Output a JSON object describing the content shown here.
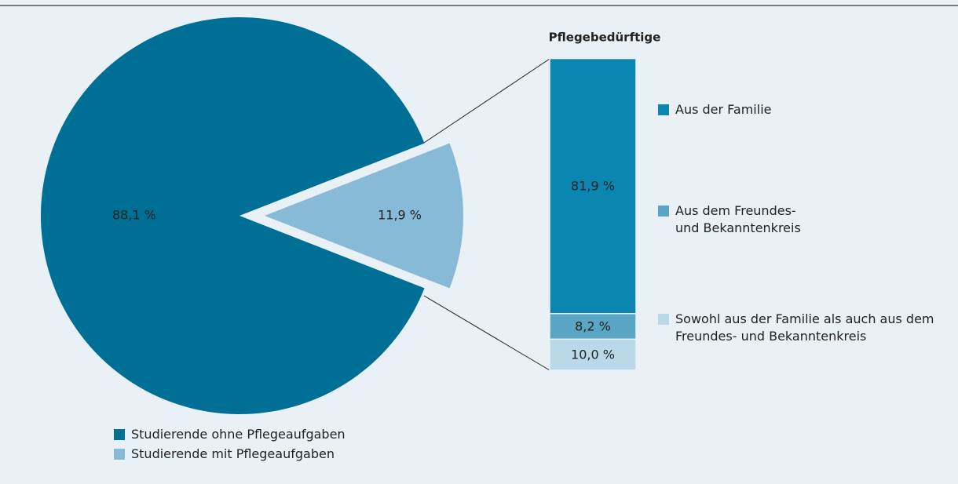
{
  "chart_data": [
    {
      "type": "pie",
      "categories": [
        "Studierende ohne Pflegeaufgaben",
        "Studierende mit Pflegeaufgaben"
      ],
      "values": [
        88.1,
        11.9
      ],
      "value_labels": [
        "88,1 %",
        "11,9 %"
      ],
      "colors": [
        "#006f96",
        "#86bad6"
      ],
      "value_label_colors": [
        "#ffffff",
        "#222222"
      ]
    },
    {
      "type": "stacked_bar",
      "title": "Pflegebedürftige",
      "ylim": [
        0,
        100
      ],
      "series": [
        {
          "name": "Aus der Familie",
          "color": "#0a86b0",
          "values": [
            81.9
          ],
          "value_labels": [
            "81,9 %"
          ]
        },
        {
          "name": "Aus dem Freundes- und Bekanntenkreis",
          "color": "#5aa4c4",
          "values": [
            8.2
          ],
          "value_labels": [
            "8,2 %"
          ]
        },
        {
          "name": "Sowohl aus der Familie als auch aus dem Freundes- und Bekanntenkreis",
          "color": "#b9d9e8",
          "values": [
            10.0
          ],
          "value_labels": [
            "10,0 %"
          ]
        }
      ]
    }
  ]
}
